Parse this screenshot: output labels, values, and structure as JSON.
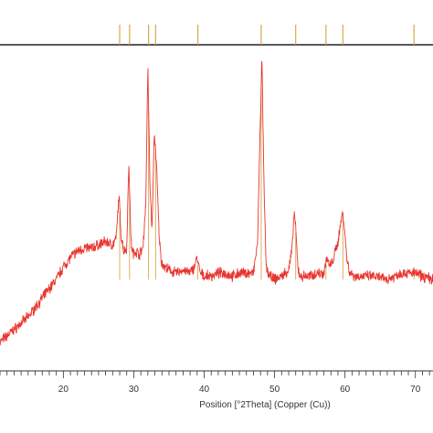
{
  "chart_data": {
    "type": "line",
    "xlabel": "Position [°2Theta] (Copper (Cu))",
    "ylabel": "",
    "xlim": [
      11,
      72.5
    ],
    "ylim": [
      0,
      100
    ],
    "x_tick_labels": [
      {
        "value": 20,
        "label": "20"
      },
      {
        "value": 30,
        "label": "30"
      },
      {
        "value": 40,
        "label": "40"
      },
      {
        "value": 50,
        "label": "50"
      },
      {
        "value": 60,
        "label": "60"
      },
      {
        "value": 70,
        "label": "70"
      }
    ],
    "series": [
      {
        "color": "#e8352e",
        "style": "noisy-line",
        "x": [
          11,
          12,
          13,
          14,
          15,
          16,
          17,
          18,
          19,
          20,
          21,
          22,
          23,
          24,
          25,
          26,
          27,
          27.5,
          27.9,
          28.2,
          28.6,
          29,
          29.3,
          29.6,
          29.9,
          30.3,
          30.8,
          31.3,
          31.7,
          32,
          32.3,
          32.6,
          32.9,
          33.1,
          33.3,
          33.6,
          33.9,
          34.3,
          35,
          36,
          37,
          38,
          38.6,
          39,
          39.4,
          40,
          41,
          42,
          43,
          44,
          45,
          46,
          47,
          47.6,
          47.9,
          48.2,
          48.5,
          48.8,
          49.3,
          50,
          51,
          52,
          52.5,
          52.8,
          53,
          53.3,
          53.6,
          54,
          55,
          56,
          57,
          57.4,
          57.8,
          58.3,
          59,
          59.4,
          59.7,
          60,
          60.3,
          60.7,
          61.5,
          62.5,
          64,
          66,
          68,
          70,
          71,
          72.5
        ],
        "y": [
          6,
          8,
          10,
          12,
          14,
          17,
          20,
          23,
          26,
          30,
          33,
          35,
          36,
          36,
          37,
          38,
          37,
          39,
          53,
          40,
          35,
          36,
          64,
          38,
          34,
          35,
          34,
          36,
          50,
          94,
          56,
          42,
          72,
          68,
          58,
          40,
          32,
          30,
          29,
          28,
          29,
          28,
          30,
          33,
          28,
          27,
          27,
          28,
          28,
          27,
          28,
          28,
          28,
          38,
          70,
          97,
          55,
          30,
          27,
          26,
          27,
          29,
          36,
          48,
          42,
          30,
          27,
          27,
          27,
          28,
          28,
          33,
          30,
          32,
          38,
          44,
          48,
          40,
          32,
          28,
          27,
          27,
          27,
          26,
          28,
          28,
          27,
          26
        ]
      }
    ],
    "reference_peaks": [
      28,
      29.4,
      32.1,
      33.1,
      39.1,
      48.1,
      53,
      57.3,
      59.7,
      69.8
    ],
    "colors": {
      "pattern": "#e8352e",
      "reference": "#d9a74a",
      "axis": "#333333"
    }
  }
}
